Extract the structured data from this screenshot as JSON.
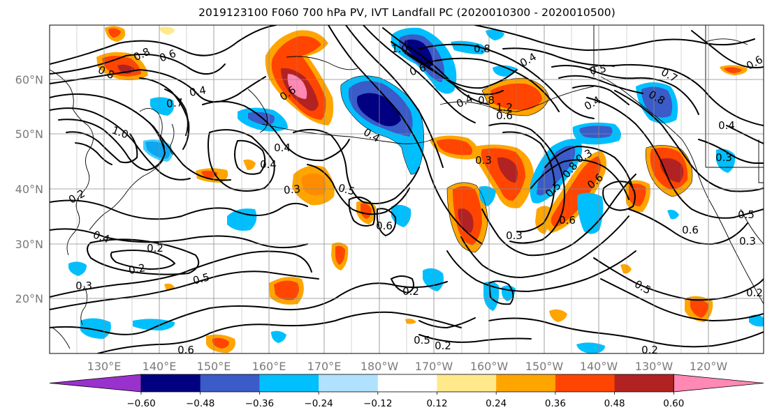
{
  "title": "2019123100 F060 700 hPa PV, IVT Landfall PC (2020010300 - 2020010500)",
  "colors": {
    "neg_extreme": "#9932cc",
    "neg_060": "#000080",
    "neg_048": "#3a5bc8",
    "neg_036": "#00bfff",
    "neg_024": "#b0e2ff",
    "neutral": "#ffffff",
    "pos_012": "#ffe98a",
    "pos_024": "#ffa500",
    "pos_036": "#ff4500",
    "pos_048": "#b22222",
    "pos_extreme": "#ff88b4",
    "contour": "#000000",
    "grid": "#8a8a8a"
  },
  "lat_labels": [
    "60°N",
    "50°N",
    "40°N",
    "30°N",
    "20°N"
  ],
  "lon_labels": [
    "130°E",
    "140°E",
    "150°E",
    "160°E",
    "170°E",
    "180°W",
    "170°W",
    "160°W",
    "150°W",
    "140°W",
    "130°W",
    "120°W"
  ],
  "colorbar": {
    "ticks": [
      "−0.60",
      "−0.48",
      "−0.36",
      "−0.24",
      "−0.12",
      "0.12",
      "0.24",
      "0.36",
      "0.48",
      "0.60"
    ]
  },
  "contour_labels": [
    "0.8",
    "0.6",
    "0.8",
    "0.4",
    "0.7",
    "1.0",
    "0.2",
    "0.4",
    "0.5",
    "0.6",
    "0.3",
    "0.2",
    "0.2",
    "0.5",
    "0.6",
    "0.4",
    "0.2",
    "0.6",
    "0.4",
    "0.5",
    "0.2",
    "0.3",
    "0.4",
    "0.6",
    "0.8",
    "1.2",
    "0.5",
    "0.7",
    "0.8",
    "0.4",
    "0.3",
    "0.8",
    "0.6",
    "0.5",
    "0.6",
    "0.5",
    "0.3",
    "0.6",
    "0.4",
    "0.5",
    "0.3",
    "0.2",
    "0.2",
    "0.3",
    "0.3",
    "0.4",
    "0.6",
    "0.4",
    "1.0",
    "0.6",
    "0.8"
  ]
}
